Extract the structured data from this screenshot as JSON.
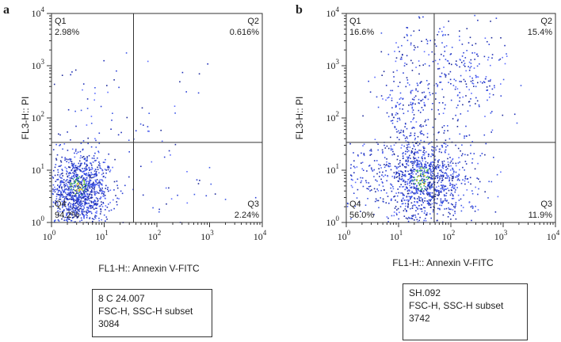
{
  "chart_data": [
    {
      "type": "scatter",
      "panel_label": "a",
      "xlabel": "FL1-H:: Annexin V-FITC",
      "ylabel": "FL3-H:: PI",
      "x_scale": "log",
      "y_scale": "log",
      "xlim": [
        1,
        10000
      ],
      "ylim": [
        1,
        10000
      ],
      "x_ticks": [
        {
          "base": "10",
          "exp": "0"
        },
        {
          "base": "10",
          "exp": "1"
        },
        {
          "base": "10",
          "exp": "2"
        },
        {
          "base": "10",
          "exp": "3"
        },
        {
          "base": "10",
          "exp": "4"
        }
      ],
      "y_ticks": [
        {
          "base": "10",
          "exp": "0"
        },
        {
          "base": "10",
          "exp": "1"
        },
        {
          "base": "10",
          "exp": "2"
        },
        {
          "base": "10",
          "exp": "3"
        },
        {
          "base": "10",
          "exp": "4"
        }
      ],
      "gate": {
        "x": 36,
        "y": 34
      },
      "quadrants": [
        {
          "name": "Q1",
          "percent": "2.98%",
          "position": "top-left"
        },
        {
          "name": "Q2",
          "percent": "0.616%",
          "position": "top-right"
        },
        {
          "name": "Q3",
          "percent": "2.24%",
          "position": "bottom-right"
        },
        {
          "name": "Q4",
          "percent": "94.2%",
          "position": "bottom-left"
        }
      ],
      "clusters": [
        {
          "n": 950,
          "cx": 3.2,
          "cy": 5,
          "sx": 0.28,
          "sy": 0.32
        },
        {
          "n": 160,
          "cx": 3.5,
          "cy": 1.8,
          "sx": 0.22,
          "sy": 0.2
        },
        {
          "n": 60,
          "cx": 5,
          "cy": 120,
          "sx": 0.55,
          "sy": 0.5
        },
        {
          "n": 40,
          "cx": 150,
          "cy": 5,
          "sx": 0.6,
          "sy": 0.5
        },
        {
          "n": 10,
          "cx": 200,
          "cy": 400,
          "sx": 0.6,
          "sy": 0.5
        }
      ],
      "info": {
        "sample": "8 C 24.007",
        "subset": "FSC-H, SSC-H subset",
        "count": "3084"
      }
    },
    {
      "type": "scatter",
      "panel_label": "b",
      "xlabel": "FL1-H:: Annexin V-FITC",
      "ylabel": "FL3-H:: PI",
      "x_scale": "log",
      "y_scale": "log",
      "xlim": [
        1,
        10000
      ],
      "ylim": [
        1,
        10000
      ],
      "x_ticks": [
        {
          "base": "10",
          "exp": "0"
        },
        {
          "base": "10",
          "exp": "1"
        },
        {
          "base": "10",
          "exp": "2"
        },
        {
          "base": "10",
          "exp": "3"
        },
        {
          "base": "10",
          "exp": "4"
        }
      ],
      "y_ticks": [
        {
          "base": "10",
          "exp": "0"
        },
        {
          "base": "10",
          "exp": "1"
        },
        {
          "base": "10",
          "exp": "2"
        },
        {
          "base": "10",
          "exp": "3"
        },
        {
          "base": "10",
          "exp": "4"
        }
      ],
      "gate": {
        "x": 48,
        "y": 34
      },
      "quadrants": [
        {
          "name": "Q1",
          "percent": "16.6%",
          "position": "top-left"
        },
        {
          "name": "Q2",
          "percent": "15.4%",
          "position": "top-right"
        },
        {
          "name": "Q3",
          "percent": "11.9%",
          "position": "bottom-right"
        },
        {
          "name": "Q4",
          "percent": "56.0%",
          "position": "bottom-left"
        }
      ],
      "clusters": [
        {
          "n": 800,
          "cx": 28,
          "cy": 7,
          "sx": 0.33,
          "sy": 0.38
        },
        {
          "n": 250,
          "cx": 14,
          "cy": 150,
          "sx": 0.3,
          "sy": 0.75
        },
        {
          "n": 260,
          "cx": 150,
          "cy": 600,
          "sx": 0.45,
          "sy": 0.6
        },
        {
          "n": 180,
          "cx": 110,
          "cy": 6,
          "sx": 0.35,
          "sy": 0.4
        },
        {
          "n": 140,
          "cx": 3.5,
          "cy": 8,
          "sx": 0.35,
          "sy": 0.35
        }
      ],
      "info": {
        "sample": "SH.092",
        "subset": "FSC-H, SSC-H subset",
        "count": "3742"
      }
    }
  ]
}
